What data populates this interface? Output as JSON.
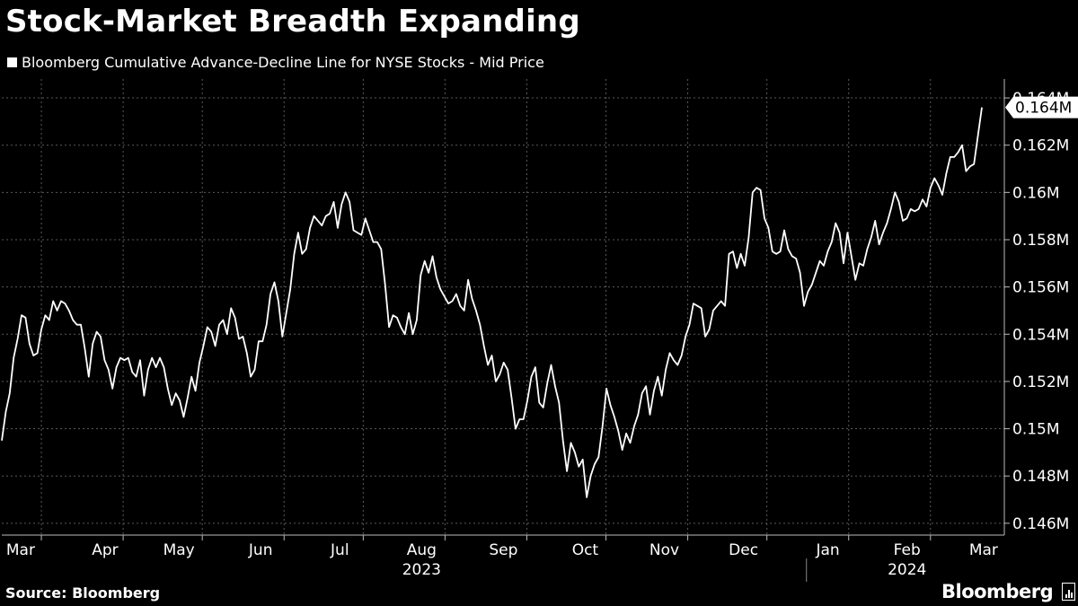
{
  "title": "Stock-Market Breadth Expanding",
  "legend": {
    "label": "Bloomberg Cumulative Advance-Decline Line for NYSE Stocks - Mid Price",
    "color": "#ffffff"
  },
  "source": "Source: Bloomberg",
  "logo": "Bloomberg",
  "last_value_label": "0.164M",
  "chart_data": {
    "type": "line",
    "title": "Stock-Market Breadth Expanding",
    "series": [
      {
        "name": "Bloomberg Cumulative Advance-Decline Line for NYSE Stocks - Mid Price",
        "color": "#ffffff",
        "x_start": "2023-03-01",
        "frequency": "trading days",
        "values": [
          149.5,
          150.7,
          151.5,
          153.0,
          153.8,
          154.8,
          154.7,
          153.6,
          153.1,
          153.2,
          154.2,
          154.8,
          154.6,
          155.4,
          155.0,
          155.4,
          155.3,
          155.0,
          154.6,
          154.4,
          154.4,
          153.4,
          152.2,
          153.6,
          154.1,
          153.9,
          152.9,
          152.5,
          151.7,
          152.6,
          153.0,
          152.9,
          153.0,
          152.4,
          152.2,
          152.9,
          151.4,
          152.5,
          153.0,
          152.6,
          153.0,
          152.6,
          151.7,
          151.0,
          151.5,
          151.2,
          150.5,
          151.3,
          152.2,
          151.6,
          152.8,
          153.5,
          154.3,
          154.1,
          153.5,
          154.4,
          154.6,
          154.0,
          155.1,
          154.7,
          153.8,
          153.9,
          153.2,
          152.2,
          152.5,
          153.7,
          153.7,
          154.4,
          155.7,
          156.2,
          155.4,
          153.9,
          154.9,
          155.9,
          157.4,
          158.3,
          157.4,
          157.6,
          158.5,
          159.0,
          158.8,
          158.6,
          159.0,
          159.1,
          159.6,
          158.5,
          159.5,
          160.0,
          159.6,
          158.4,
          158.3,
          158.2,
          158.9,
          158.4,
          157.9,
          157.9,
          157.6,
          156.1,
          154.3,
          154.8,
          154.7,
          154.3,
          154.0,
          154.9,
          154.0,
          154.6,
          156.5,
          157.1,
          156.6,
          157.3,
          156.4,
          155.9,
          155.6,
          155.3,
          155.4,
          155.7,
          155.2,
          155.0,
          156.3,
          155.5,
          155.0,
          154.4,
          153.5,
          152.7,
          153.1,
          152.0,
          152.3,
          152.8,
          152.5,
          151.3,
          150.0,
          150.4,
          150.4,
          151.2,
          152.2,
          152.6,
          151.1,
          150.9,
          151.9,
          152.7,
          151.8,
          151.1,
          149.5,
          148.2,
          149.4,
          149.0,
          148.4,
          148.7,
          147.1,
          148.0,
          148.5,
          148.8,
          150.1,
          151.7,
          151.0,
          150.5,
          149.9,
          149.1,
          149.8,
          149.4,
          150.1,
          150.6,
          151.5,
          151.8,
          150.6,
          151.6,
          152.2,
          151.4,
          152.5,
          153.2,
          152.9,
          152.7,
          153.1,
          153.9,
          154.4,
          155.3,
          155.2,
          155.1,
          153.9,
          154.2,
          155.0,
          155.2,
          155.4,
          155.2,
          157.4,
          157.5,
          156.8,
          157.4,
          156.9,
          158.1,
          160.0,
          160.2,
          160.1,
          158.9,
          158.5,
          157.5,
          157.4,
          157.5,
          158.4,
          157.6,
          157.3,
          157.2,
          156.6,
          155.2,
          155.8,
          156.1,
          156.6,
          157.1,
          156.9,
          157.5,
          157.9,
          158.7,
          158.3,
          157.0,
          158.3,
          157.3,
          156.3,
          157.0,
          156.9,
          157.6,
          158.1,
          158.8,
          157.8,
          158.3,
          158.7,
          159.3,
          160.0,
          159.6,
          158.8,
          158.9,
          159.3,
          159.2,
          159.3,
          159.7,
          159.4,
          160.2,
          160.6,
          160.3,
          159.9,
          160.8,
          161.5,
          161.5,
          161.7,
          162.0,
          160.9,
          161.1,
          161.2,
          162.4,
          163.6
        ]
      }
    ],
    "ylim": [
      0.1455,
      0.1648
    ],
    "y_ticks": [
      "0.146M",
      "0.148M",
      "0.15M",
      "0.152M",
      "0.154M",
      "0.156M",
      "0.158M",
      "0.16M",
      "0.162M",
      "0.164M"
    ],
    "y_tick_values": [
      0.146,
      0.148,
      0.15,
      0.152,
      0.154,
      0.156,
      0.158,
      0.16,
      0.162,
      0.164
    ],
    "x_tick_labels": [
      {
        "label": "Mar",
        "date": "2023-03-02"
      },
      {
        "label": "Apr",
        "date": "2023-04-03"
      },
      {
        "label": "May",
        "date": "2023-05-01"
      },
      {
        "label": "Jun",
        "date": "2023-06-01"
      },
      {
        "label": "Jul",
        "date": "2023-07-01"
      },
      {
        "label": "Aug",
        "date": "2023-08-01"
      },
      {
        "label": "Sep",
        "date": "2023-09-01"
      },
      {
        "label": "Oct",
        "date": "2023-10-02"
      },
      {
        "label": "Nov",
        "date": "2023-11-01"
      },
      {
        "label": "Dec",
        "date": "2023-12-01"
      },
      {
        "label": "Jan",
        "date": "2024-01-02"
      },
      {
        "label": "Feb",
        "date": "2024-02-01"
      },
      {
        "label": "Mar",
        "date": "2024-03-01"
      }
    ],
    "gridline_dates": [
      "2023-03-16",
      "2023-04-16",
      "2023-05-16",
      "2023-06-16",
      "2023-07-16",
      "2023-08-16",
      "2023-09-16",
      "2023-10-16",
      "2023-11-16",
      "2023-12-16",
      "2024-01-16",
      "2024-02-16"
    ],
    "year_labels": [
      {
        "label": "2023",
        "date": "2023-08-01"
      },
      {
        "label": "2024",
        "date": "2024-02-01"
      }
    ],
    "year_divider_date": "2023-12-31",
    "x_start_date": "2023-03-01",
    "x_end_date": "2024-03-15",
    "grid": true,
    "legend_position": "top-left"
  }
}
